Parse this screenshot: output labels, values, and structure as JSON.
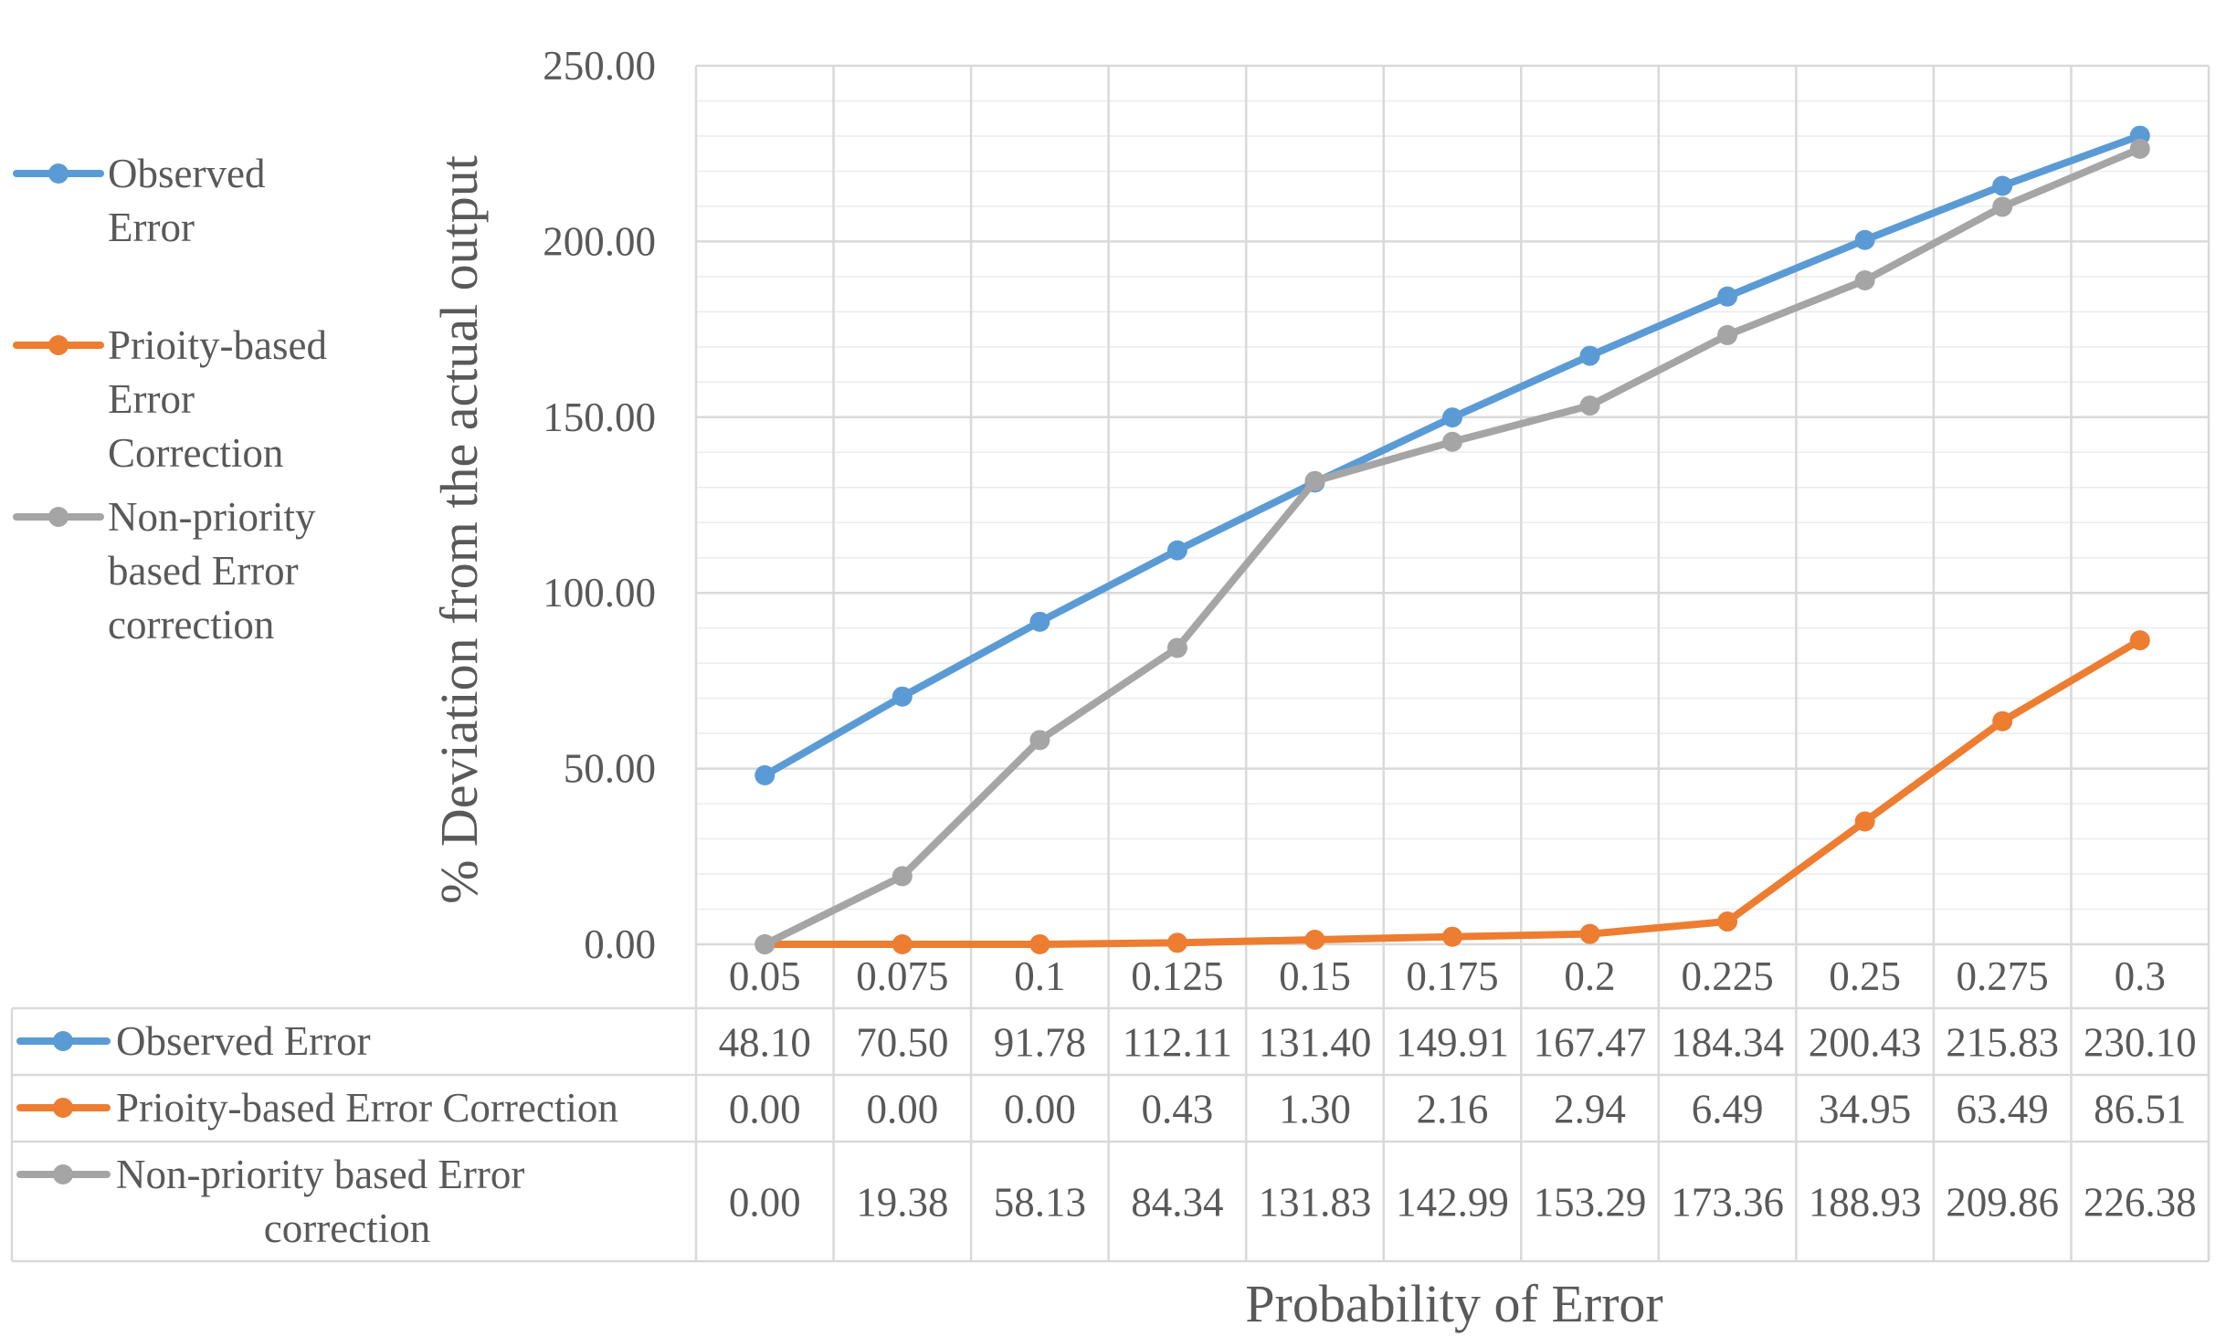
{
  "chart_data": {
    "type": "line",
    "title": "",
    "xlabel": "Probability of Error",
    "ylabel": "% Deviation from the actual output",
    "ylim": [
      0,
      250
    ],
    "yticks": [
      "0.00",
      "50.00",
      "100.00",
      "150.00",
      "200.00",
      "250.00"
    ],
    "grid": true,
    "legend_position": "left",
    "categories": [
      "0.05",
      "0.075",
      "0.1",
      "0.125",
      "0.15",
      "0.175",
      "0.2",
      "0.225",
      "0.25",
      "0.275",
      "0.3"
    ],
    "series": [
      {
        "name": "Observed Error",
        "legend_lines": [
          "Observed",
          "Error"
        ],
        "table_lines": [
          "Observed Error"
        ],
        "color": "#5B9BD5",
        "values": [
          48.1,
          70.5,
          91.78,
          112.11,
          131.4,
          149.91,
          167.47,
          184.34,
          200.43,
          215.83,
          230.1
        ],
        "labels": [
          "48.10",
          "70.50",
          "91.78",
          "112.11",
          "131.40",
          "149.91",
          "167.47",
          "184.34",
          "200.43",
          "215.83",
          "230.10"
        ]
      },
      {
        "name": "Prioity-based Error Correction",
        "legend_lines": [
          "Prioity-based",
          "Error",
          "Correction"
        ],
        "table_lines": [
          "Prioity-based Error Correction"
        ],
        "color": "#ED7D31",
        "values": [
          0.0,
          0.0,
          0.0,
          0.43,
          1.3,
          2.16,
          2.94,
          6.49,
          34.95,
          63.49,
          86.51
        ],
        "labels": [
          "0.00",
          "0.00",
          "0.00",
          "0.43",
          "1.30",
          "2.16",
          "2.94",
          "6.49",
          "34.95",
          "63.49",
          "86.51"
        ]
      },
      {
        "name": "Non-priority based Error correction",
        "legend_lines": [
          "Non-priority",
          "based Error",
          "correction"
        ],
        "table_lines": [
          "Non-priority based Error",
          "correction"
        ],
        "color": "#A5A5A5",
        "values": [
          0.0,
          19.38,
          58.13,
          84.34,
          131.83,
          142.99,
          153.29,
          173.36,
          188.93,
          209.86,
          226.38
        ],
        "labels": [
          "0.00",
          "19.38",
          "58.13",
          "84.34",
          "131.83",
          "142.99",
          "153.29",
          "173.36",
          "188.93",
          "209.86",
          "226.38"
        ]
      }
    ]
  }
}
